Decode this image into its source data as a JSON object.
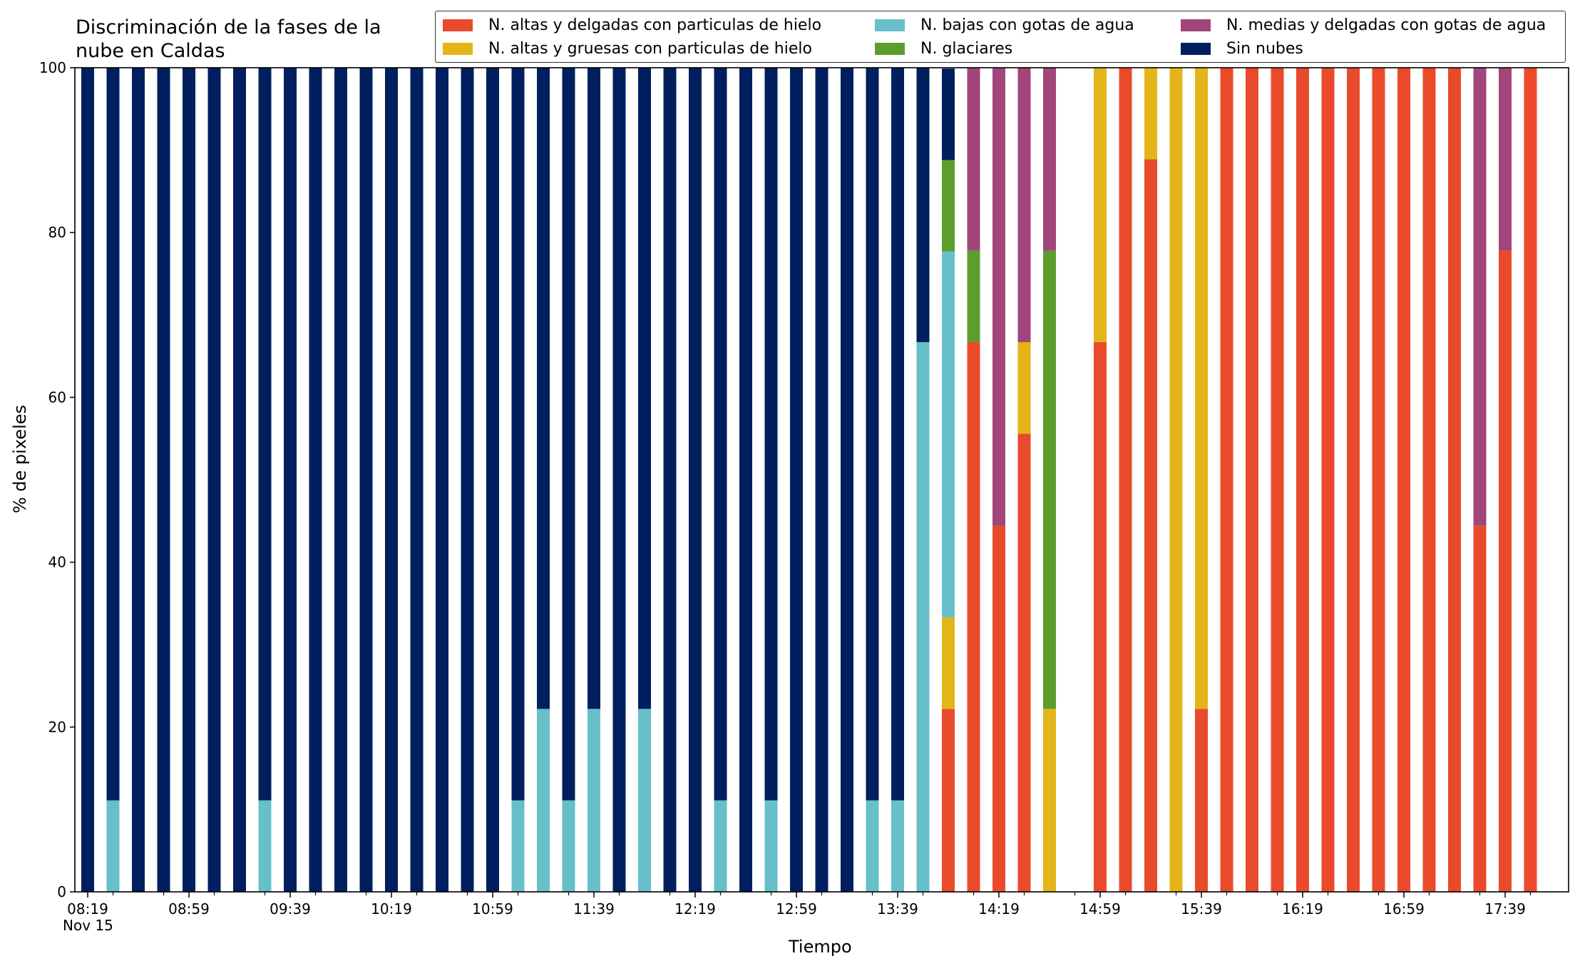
{
  "chart_data": {
    "type": "bar",
    "stacked": true,
    "title": "Discriminación de la fases de la\nnube en Caldas",
    "xlabel": "Tiempo",
    "ylabel": "% de pixeles",
    "ylim": [
      0,
      100
    ],
    "yticks": [
      0,
      20,
      40,
      60,
      80,
      100
    ],
    "xtick_labels": [
      "08:19",
      "08:59",
      "09:39",
      "10:19",
      "10:59",
      "11:39",
      "12:19",
      "12:59",
      "13:39",
      "14:19",
      "14:59",
      "15:39",
      "16:19",
      "16:59",
      "17:39"
    ],
    "date_label": "Nov 15",
    "legend_position": "top-right",
    "categories": [
      "08:19",
      "08:29",
      "08:39",
      "08:49",
      "08:59",
      "09:09",
      "09:19",
      "09:29",
      "09:39",
      "09:49",
      "09:59",
      "10:09",
      "10:19",
      "10:29",
      "10:39",
      "10:49",
      "10:59",
      "11:09",
      "11:19",
      "11:29",
      "11:39",
      "11:49",
      "11:59",
      "12:09",
      "12:19",
      "12:29",
      "12:39",
      "12:49",
      "12:59",
      "13:09",
      "13:19",
      "13:29",
      "13:39",
      "13:49",
      "13:59",
      "14:09",
      "14:19",
      "14:29",
      "14:39",
      "14:49",
      "14:59",
      "15:09",
      "15:19",
      "15:29",
      "15:39",
      "15:49",
      "15:59",
      "16:09",
      "16:19",
      "16:29",
      "16:39",
      "16:49",
      "16:59",
      "17:09",
      "17:19",
      "17:29",
      "17:39",
      "17:49"
    ],
    "series": [
      {
        "name": "N. altas y delgadas con particulas de hielo",
        "color": "#ea4a2c",
        "values": [
          0,
          0,
          0,
          0,
          0,
          0,
          0,
          0,
          0,
          0,
          0,
          0,
          0,
          0,
          0,
          0,
          0,
          0,
          0,
          0,
          0,
          0,
          0,
          0,
          0,
          0,
          0,
          0,
          0,
          0,
          0,
          0,
          0,
          0,
          22.2,
          66.7,
          44.4,
          55.6,
          0,
          0,
          66.7,
          100,
          88.9,
          0,
          22.2,
          100,
          100,
          100,
          100,
          100,
          100,
          100,
          100,
          100,
          100,
          44.4,
          77.8,
          100
        ]
      },
      {
        "name": "N. altas y gruesas con particulas de hielo",
        "color": "#e3b519",
        "values": [
          0,
          0,
          0,
          0,
          0,
          0,
          0,
          0,
          0,
          0,
          0,
          0,
          0,
          0,
          0,
          0,
          0,
          0,
          0,
          0,
          0,
          0,
          0,
          0,
          0,
          0,
          0,
          0,
          0,
          0,
          0,
          0,
          0,
          0,
          11.1,
          0,
          0,
          11.1,
          22.2,
          0,
          33.3,
          0,
          11.1,
          100,
          77.8,
          0,
          0,
          0,
          0,
          0,
          0,
          0,
          0,
          0,
          0,
          0,
          0,
          0
        ]
      },
      {
        "name": "N. bajas con gotas de agua",
        "color": "#67bfca",
        "values": [
          0,
          11.1,
          0,
          0,
          0,
          0,
          0,
          11.1,
          0,
          0,
          0,
          0,
          0,
          0,
          0,
          0,
          0,
          11.1,
          22.2,
          11.1,
          22.2,
          0,
          22.2,
          0,
          0,
          11.1,
          0,
          11.1,
          0,
          0,
          0,
          11.1,
          11.1,
          66.7,
          44.4,
          0,
          0,
          0,
          0,
          0,
          0,
          0,
          0,
          0,
          0,
          0,
          0,
          0,
          0,
          0,
          0,
          0,
          0,
          0,
          0,
          0,
          0,
          0
        ]
      },
      {
        "name": "N. glaciares",
        "color": "#5c9e2c",
        "values": [
          0,
          0,
          0,
          0,
          0,
          0,
          0,
          0,
          0,
          0,
          0,
          0,
          0,
          0,
          0,
          0,
          0,
          0,
          0,
          0,
          0,
          0,
          0,
          0,
          0,
          0,
          0,
          0,
          0,
          0,
          0,
          0,
          0,
          0,
          11.1,
          11.1,
          0,
          0,
          55.6,
          0,
          0,
          0,
          0,
          0,
          0,
          0,
          0,
          0,
          0,
          0,
          0,
          0,
          0,
          0,
          0,
          0,
          0,
          0
        ]
      },
      {
        "name": "N. medias y delgadas con gotas de agua",
        "color": "#a2457b",
        "values": [
          0,
          0,
          0,
          0,
          0,
          0,
          0,
          0,
          0,
          0,
          0,
          0,
          0,
          0,
          0,
          0,
          0,
          0,
          0,
          0,
          0,
          0,
          0,
          0,
          0,
          0,
          0,
          0,
          0,
          0,
          0,
          0,
          0,
          0,
          0,
          22.2,
          55.6,
          33.3,
          22.2,
          0,
          0,
          0,
          0,
          0,
          0,
          0,
          0,
          0,
          0,
          0,
          0,
          0,
          0,
          0,
          0,
          55.6,
          22.2,
          0
        ]
      },
      {
        "name": "Sin nubes",
        "color": "#001f5e",
        "values": [
          100,
          88.9,
          100,
          100,
          100,
          100,
          100,
          88.9,
          100,
          100,
          100,
          100,
          100,
          100,
          100,
          100,
          100,
          88.9,
          77.8,
          88.9,
          77.8,
          100,
          77.8,
          100,
          100,
          88.9,
          100,
          88.9,
          100,
          100,
          100,
          88.9,
          88.9,
          33.3,
          11.1,
          0,
          0,
          0,
          0,
          0,
          0,
          0,
          0,
          0,
          0,
          0,
          0,
          0,
          0,
          0,
          0,
          0,
          0,
          0,
          0,
          0,
          0,
          0
        ]
      }
    ],
    "legend_order": [
      0,
      1,
      2,
      3,
      4,
      5
    ]
  }
}
